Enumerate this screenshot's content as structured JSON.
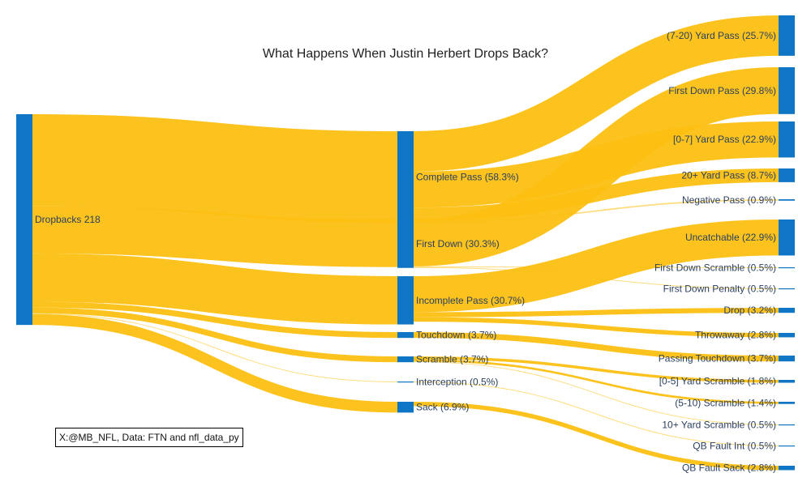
{
  "chart_data": {
    "type": "sankey",
    "title": "What Happens When Justin Herbert Drops Back?",
    "colors": {
      "node": "#0e76c4",
      "link": "#fcbf12"
    },
    "nodes": [
      {
        "id": "dropbacks",
        "label": "Dropbacks 218",
        "column": 0
      },
      {
        "id": "complete",
        "label": "Complete Pass (58.3%)",
        "column": 1
      },
      {
        "id": "firstdown",
        "label": "First Down (30.3%)",
        "column": 1
      },
      {
        "id": "incomplete",
        "label": "Incomplete Pass (30.7%)",
        "column": 1
      },
      {
        "id": "touchdown",
        "label": "Touchdown (3.7%)",
        "column": 1
      },
      {
        "id": "scramble",
        "label": "Scramble (3.7%)",
        "column": 1
      },
      {
        "id": "interception",
        "label": "Interception (0.5%)",
        "column": 1
      },
      {
        "id": "sack",
        "label": "Sack (6.9%)",
        "column": 1
      },
      {
        "id": "p720",
        "label": "(7-20) Yard Pass (25.7%)",
        "column": 2
      },
      {
        "id": "fdpass",
        "label": "First Down Pass (29.8%)",
        "column": 2
      },
      {
        "id": "p07",
        "label": "[0-7] Yard Pass (22.9%)",
        "column": 2
      },
      {
        "id": "p20",
        "label": "20+ Yard Pass (8.7%)",
        "column": 2
      },
      {
        "id": "negpass",
        "label": "Negative Pass (0.9%)",
        "column": 2
      },
      {
        "id": "uncatch",
        "label": "Uncatchable (22.9%)",
        "column": 2
      },
      {
        "id": "fdscr",
        "label": "First Down Scramble (0.5%)",
        "column": 2
      },
      {
        "id": "fdpen",
        "label": "First Down Penalty (0.5%)",
        "column": 2
      },
      {
        "id": "drop",
        "label": "Drop (3.2%)",
        "column": 2
      },
      {
        "id": "throwaway",
        "label": "Throwaway (2.8%)",
        "column": 2
      },
      {
        "id": "passtd",
        "label": "Passing Touchdown (3.7%)",
        "column": 2
      },
      {
        "id": "scr05",
        "label": "[0-5] Yard Scramble (1.8%)",
        "column": 2
      },
      {
        "id": "scr510",
        "label": "(5-10) Scramble (1.4%)",
        "column": 2
      },
      {
        "id": "scr10",
        "label": "10+ Yard Scramble (0.5%)",
        "column": 2
      },
      {
        "id": "qbint",
        "label": "QB Fault Int (0.5%)",
        "column": 2
      },
      {
        "id": "qbsack",
        "label": "QB Fault Sack (2.8%)",
        "column": 2
      }
    ],
    "links": [
      {
        "source": "dropbacks",
        "target": "complete",
        "value": 58.3
      },
      {
        "source": "dropbacks",
        "target": "firstdown",
        "value": 30.3
      },
      {
        "source": "dropbacks",
        "target": "incomplete",
        "value": 30.7
      },
      {
        "source": "dropbacks",
        "target": "touchdown",
        "value": 3.7
      },
      {
        "source": "dropbacks",
        "target": "scramble",
        "value": 3.7
      },
      {
        "source": "dropbacks",
        "target": "interception",
        "value": 0.5
      },
      {
        "source": "dropbacks",
        "target": "sack",
        "value": 6.9
      },
      {
        "source": "complete",
        "target": "p720",
        "value": 25.7
      },
      {
        "source": "complete",
        "target": "p07",
        "value": 22.9
      },
      {
        "source": "complete",
        "target": "p20",
        "value": 8.7
      },
      {
        "source": "complete",
        "target": "negpass",
        "value": 0.9
      },
      {
        "source": "firstdown",
        "target": "fdpass",
        "value": 29.8
      },
      {
        "source": "firstdown",
        "target": "fdscr",
        "value": 0.5
      },
      {
        "source": "firstdown",
        "target": "fdpen",
        "value": 0.5
      },
      {
        "source": "incomplete",
        "target": "uncatch",
        "value": 22.9
      },
      {
        "source": "incomplete",
        "target": "drop",
        "value": 3.2
      },
      {
        "source": "incomplete",
        "target": "throwaway",
        "value": 2.8
      },
      {
        "source": "touchdown",
        "target": "passtd",
        "value": 3.7
      },
      {
        "source": "scramble",
        "target": "scr05",
        "value": 1.8
      },
      {
        "source": "scramble",
        "target": "scr510",
        "value": 1.4
      },
      {
        "source": "scramble",
        "target": "scr10",
        "value": 0.5
      },
      {
        "source": "interception",
        "target": "qbint",
        "value": 0.5
      },
      {
        "source": "sack",
        "target": "qbsack",
        "value": 2.8
      }
    ]
  },
  "credit": "X:@MB_NFL, Data: FTN and nfl_data_py"
}
